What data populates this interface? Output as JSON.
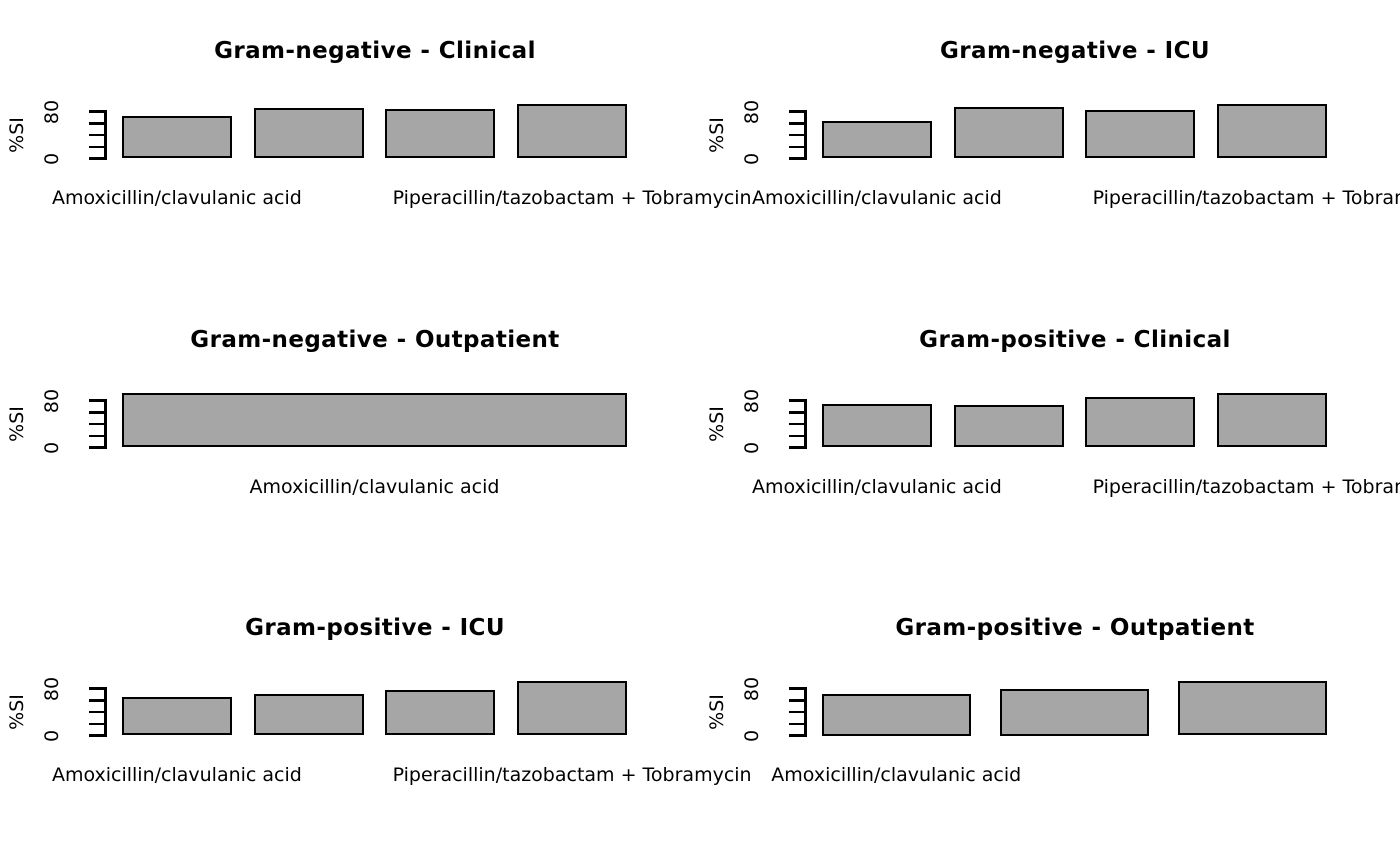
{
  "style": {
    "background": "#ffffff",
    "text_color": "#000000",
    "bar_fill": "#a6a6a6",
    "bar_border": "#000000"
  },
  "chart_data": [
    {
      "type": "bar",
      "title": "Gram-negative - Clinical",
      "ylabel": "%SI",
      "ylim": [
        0,
        100
      ],
      "ytick_values": [
        0,
        20,
        40,
        60,
        80
      ],
      "ytick_labels_shown": [
        "0",
        "80"
      ],
      "values": [
        73,
        86,
        84,
        93
      ],
      "bar_count": 4,
      "xtick_labels": [
        {
          "bar_index": 0,
          "label": "Amoxicillin/clavulanic acid"
        },
        {
          "bar_index": 3,
          "label": "Piperacillin/tazobactam + Tobramycin"
        }
      ],
      "legend": null,
      "grid": false
    },
    {
      "type": "bar",
      "title": "Gram-negative - ICU",
      "ylabel": "%SI",
      "ylim": [
        0,
        100
      ],
      "ytick_values": [
        0,
        20,
        40,
        60,
        80
      ],
      "ytick_labels_shown": [
        "0",
        "80"
      ],
      "values": [
        64,
        88,
        82,
        92
      ],
      "bar_count": 4,
      "xtick_labels": [
        {
          "bar_index": 0,
          "label": "Amoxicillin/clavulanic acid"
        },
        {
          "bar_index": 3,
          "label": "Piperacillin/tazobactam + Tobramycin"
        }
      ],
      "legend": null,
      "grid": false
    },
    {
      "type": "bar",
      "title": "Gram-negative - Outpatient",
      "ylabel": "%SI",
      "ylim": [
        0,
        100
      ],
      "ytick_values": [
        0,
        20,
        40,
        60,
        80
      ],
      "ytick_labels_shown": [
        "0",
        "80"
      ],
      "values": [
        93
      ],
      "bar_count": 1,
      "xtick_labels": [
        {
          "bar_index": 0,
          "label": "Amoxicillin/clavulanic acid"
        }
      ],
      "legend": null,
      "grid": false
    },
    {
      "type": "bar",
      "title": "Gram-positive - Clinical",
      "ylabel": "%SI",
      "ylim": [
        0,
        100
      ],
      "ytick_values": [
        0,
        20,
        40,
        60,
        80
      ],
      "ytick_labels_shown": [
        "0",
        "80"
      ],
      "values": [
        74,
        72,
        86,
        92
      ],
      "bar_count": 4,
      "xtick_labels": [
        {
          "bar_index": 0,
          "label": "Amoxicillin/clavulanic acid"
        },
        {
          "bar_index": 3,
          "label": "Piperacillin/tazobactam + Tobramycin"
        }
      ],
      "legend": null,
      "grid": false
    },
    {
      "type": "bar",
      "title": "Gram-positive - ICU",
      "ylabel": "%SI",
      "ylim": [
        0,
        100
      ],
      "ytick_values": [
        0,
        20,
        40,
        60,
        80
      ],
      "ytick_labels_shown": [
        "0",
        "80"
      ],
      "values": [
        66,
        71,
        77,
        92
      ],
      "bar_count": 4,
      "xtick_labels": [
        {
          "bar_index": 0,
          "label": "Amoxicillin/clavulanic acid"
        },
        {
          "bar_index": 3,
          "label": "Piperacillin/tazobactam + Tobramycin"
        }
      ],
      "legend": null,
      "grid": false
    },
    {
      "type": "bar",
      "title": "Gram-positive - Outpatient",
      "ylabel": "%SI",
      "ylim": [
        0,
        100
      ],
      "ytick_values": [
        0,
        20,
        40,
        60,
        80
      ],
      "ytick_labels_shown": [
        "0",
        "80"
      ],
      "values": [
        70,
        80,
        93
      ],
      "bar_count": 3,
      "xtick_labels": [
        {
          "bar_index": 0,
          "label": "Amoxicillin/clavulanic acid"
        }
      ],
      "legend": null,
      "grid": false
    }
  ]
}
